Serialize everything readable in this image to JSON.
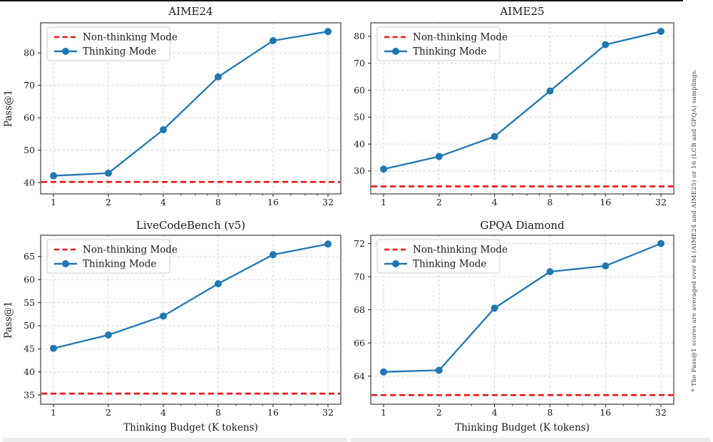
{
  "page": {
    "background": "#ffffff",
    "top_rule_color": "#141414",
    "footnote": "* The Pass@1 scores are averaged over 64 (AIME24 and AIME25) or 16 (LCB and GPQA) samplings."
  },
  "chart_data": [
    {
      "type": "line",
      "title": "AIME24",
      "xlabel": "",
      "ylabel": "Pass@1",
      "x": [
        1,
        2,
        4,
        8,
        16,
        32
      ],
      "x_scale": "log2",
      "xticklabels": [
        "1",
        "2",
        "4",
        "8",
        "16",
        "32"
      ],
      "minor_xticks": [
        3,
        5,
        6,
        7,
        10,
        12,
        14,
        20,
        24,
        28
      ],
      "yticks": [
        40,
        50,
        60,
        70,
        80
      ],
      "ylim": [
        36.5,
        89.3
      ],
      "grid": "dashed",
      "legend_position": "upper left",
      "series": [
        {
          "name": "Thinking Mode",
          "color": "#1f77b4",
          "marker": "circle",
          "values": [
            42.1,
            42.9,
            56.3,
            72.6,
            83.8,
            86.6
          ]
        }
      ],
      "hline": {
        "name": "Non-thinking Mode",
        "color": "#ee1111",
        "style": "dashed",
        "value": 40.2
      }
    },
    {
      "type": "line",
      "title": "AIME25",
      "xlabel": "",
      "ylabel": "",
      "x": [
        1,
        2,
        4,
        8,
        16,
        32
      ],
      "x_scale": "log2",
      "xticklabels": [
        "1",
        "2",
        "4",
        "8",
        "16",
        "32"
      ],
      "minor_xticks": [
        3,
        5,
        6,
        7,
        10,
        12,
        14,
        20,
        24,
        28
      ],
      "yticks": [
        30,
        40,
        50,
        60,
        70,
        80
      ],
      "ylim": [
        21.5,
        85.0
      ],
      "grid": "dashed",
      "legend_position": "upper left",
      "series": [
        {
          "name": "Thinking Mode",
          "color": "#1f77b4",
          "marker": "circle",
          "values": [
            30.7,
            35.4,
            42.8,
            59.7,
            76.9,
            81.8
          ]
        }
      ],
      "hline": {
        "name": "Non-thinking Mode",
        "color": "#ee1111",
        "style": "dashed",
        "value": 24.3
      }
    },
    {
      "type": "line",
      "title": "LiveCodeBench (v5)",
      "xlabel": "Thinking Budget (K tokens)",
      "ylabel": "Pass@1",
      "x": [
        1,
        2,
        4,
        8,
        16,
        32
      ],
      "x_scale": "log2",
      "xticklabels": [
        "1",
        "2",
        "4",
        "8",
        "16",
        "32"
      ],
      "minor_xticks": [
        3,
        5,
        6,
        7,
        10,
        12,
        14,
        20,
        24,
        28
      ],
      "yticks": [
        35,
        40,
        45,
        50,
        55,
        60,
        65
      ],
      "ylim": [
        33.0,
        69.6
      ],
      "grid": "dashed",
      "legend_position": "upper left",
      "series": [
        {
          "name": "Thinking Mode",
          "color": "#1f77b4",
          "marker": "circle",
          "values": [
            45.1,
            48.0,
            52.1,
            59.1,
            65.4,
            67.7
          ]
        }
      ],
      "hline": {
        "name": "Non-thinking Mode",
        "color": "#ee1111",
        "style": "dashed",
        "value": 35.3
      }
    },
    {
      "type": "line",
      "title": "GPQA Diamond",
      "xlabel": "Thinking Budget (K tokens)",
      "ylabel": "",
      "x": [
        1,
        2,
        4,
        8,
        16,
        32
      ],
      "x_scale": "log2",
      "xticklabels": [
        "1",
        "2",
        "4",
        "8",
        "16",
        "32"
      ],
      "minor_xticks": [
        3,
        5,
        6,
        7,
        10,
        12,
        14,
        20,
        24,
        28
      ],
      "yticks": [
        64,
        66,
        68,
        70,
        72
      ],
      "ylim": [
        62.3,
        72.5
      ],
      "grid": "dashed",
      "legend_position": "upper left",
      "series": [
        {
          "name": "Thinking Mode",
          "color": "#1f77b4",
          "marker": "circle",
          "values": [
            64.25,
            64.35,
            68.1,
            70.3,
            70.65,
            72.0
          ]
        }
      ],
      "hline": {
        "name": "Non-thinking Mode",
        "color": "#ee1111",
        "style": "dashed",
        "value": 62.85
      }
    }
  ]
}
